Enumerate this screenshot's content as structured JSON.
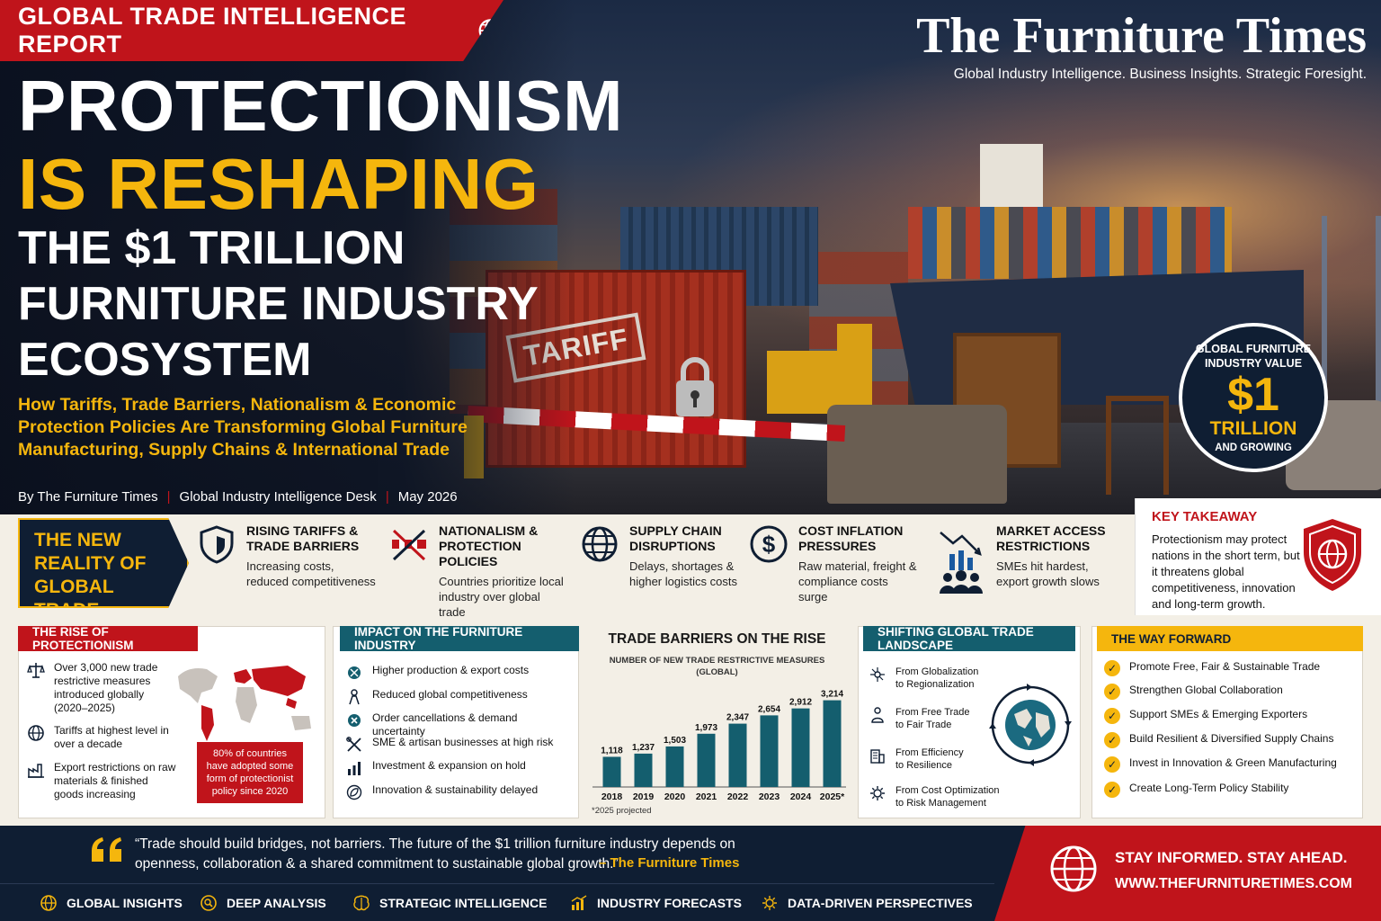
{
  "header": {
    "banner": "GLOBAL TRADE INTELLIGENCE REPORT",
    "headline_1": "PROTECTIONISM",
    "headline_2": "IS RESHAPING",
    "headline_3": "THE $1 TRILLION",
    "headline_4": "FURNITURE INDUSTRY",
    "headline_5": "ECOSYSTEM",
    "subhead": "How Tariffs, Trade Barriers, Nationalism & Economic Protection Policies Are Transforming Global Furniture Manufacturing, Supply Chains & International Trade",
    "byline": [
      "By The Furniture Times",
      "Global Industry Intelligence Desk",
      "May 2026"
    ],
    "masthead_title": "The Furniture Times",
    "masthead_tagline": "Global Industry Intelligence. Business Insights. Strategic Foresight.",
    "stamp_text": "TARIFF"
  },
  "value_badge": {
    "line1": "GLOBAL FURNITURE",
    "line2": "INDUSTRY VALUE",
    "value": "$1",
    "unit": "TRILLION",
    "note": "AND GROWING"
  },
  "reality": {
    "label_1": "THE NEW",
    "label_2": "REALITY OF",
    "label_3": "GLOBAL TRADE",
    "items": [
      {
        "title": "RISING TARIFFS & TRADE BARRIERS",
        "desc": "Increasing costs, reduced competitiveness",
        "icon": "shield-icon"
      },
      {
        "title": "NATIONALISM & PROTECTION POLICIES",
        "desc": "Countries prioritize local industry over global trade",
        "icon": "barrier-icon"
      },
      {
        "title": "SUPPLY CHAIN DISRUPTIONS",
        "desc": "Delays, shortages & higher logistics costs",
        "icon": "globe-icon"
      },
      {
        "title": "COST INFLATION PRESSURES",
        "desc": "Raw material, freight & compliance costs surge",
        "icon": "dollar-icon"
      },
      {
        "title": "MARKET ACCESS RESTRICTIONS",
        "desc": "SMEs hit hardest, export growth slows",
        "icon": "declining-chart-people-icon"
      }
    ]
  },
  "key_takeaway": {
    "heading": "KEY TAKEAWAY",
    "body": "Protectionism may protect nations in the short term, but it threatens global competitiveness, innovation and long-term growth."
  },
  "rise": {
    "tab": "THE RISE OF PROTECTIONISM",
    "items": [
      "Over 3,000 new trade restrictive measures introduced globally (2020–2025)",
      "Tariffs at highest level in over a decade",
      "Export restrictions on raw materials & finished goods increasing"
    ],
    "callout": "80% of countries have adopted some form of protectionist policy since 2020"
  },
  "impact": {
    "tab": "IMPACT ON THE FURNITURE INDUSTRY",
    "items": [
      "Higher production & export costs",
      "Reduced global competitiveness",
      "Order cancellations & demand uncertainty",
      "SME & artisan businesses at high risk",
      "Investment & expansion on hold",
      "Innovation & sustainability delayed"
    ]
  },
  "chart_data": {
    "type": "bar",
    "title": "TRADE BARRIERS ON THE RISE",
    "subtitle": "NUMBER OF NEW TRADE RESTRICTIVE MEASURES (GLOBAL)",
    "categories": [
      "2018",
      "2019",
      "2020",
      "2021",
      "2022",
      "2023",
      "2024",
      "2025*"
    ],
    "values": [
      1118,
      1237,
      1503,
      1973,
      2347,
      2654,
      2912,
      3214
    ],
    "value_labels": [
      "1,118",
      "1,237",
      "1,503",
      "1,973",
      "2,347",
      "2,654",
      "2,912",
      "3,214"
    ],
    "note": "*2025 projected",
    "ylim": [
      0,
      3400
    ],
    "color": "#145e6e"
  },
  "shifting": {
    "tab": "SHIFTING GLOBAL TRADE LANDSCAPE",
    "items": [
      {
        "from": "From Globalization",
        "to": "to Regionalization"
      },
      {
        "from": "From Free Trade",
        "to": "to Fair Trade"
      },
      {
        "from": "From Efficiency",
        "to": "to Resilience"
      },
      {
        "from": "From Cost Optimization",
        "to": "to Risk Management"
      }
    ]
  },
  "way_forward": {
    "tab": "THE WAY FORWARD",
    "items": [
      "Promote Free, Fair & Sustainable Trade",
      "Strengthen Global Collaboration",
      "Support SMEs & Emerging Exporters",
      "Build Resilient & Diversified Supply Chains",
      "Invest in Innovation & Green Manufacturing",
      "Create Long-Term Policy Stability"
    ]
  },
  "quote": {
    "text": "“Trade should build bridges, not barriers. The future of the $1 trillion furniture industry depends on openness, collaboration & a shared commitment to sustainable global growth.”",
    "attribution": "– The Furniture Times"
  },
  "cta": {
    "line1": "STAY INFORMED. STAY AHEAD.",
    "line2": "WWW.THEFURNITURETIMES.COM"
  },
  "footer": [
    "GLOBAL INSIGHTS",
    "DEEP ANALYSIS",
    "STRATEGIC INTELLIGENCE",
    "INDUSTRY FORECASTS",
    "DATA-DRIVEN PERSPECTIVES"
  ],
  "colors": {
    "brand_red": "#c0141b",
    "navy": "#0f1e33",
    "gold": "#f5b60d",
    "teal": "#145e6e"
  }
}
